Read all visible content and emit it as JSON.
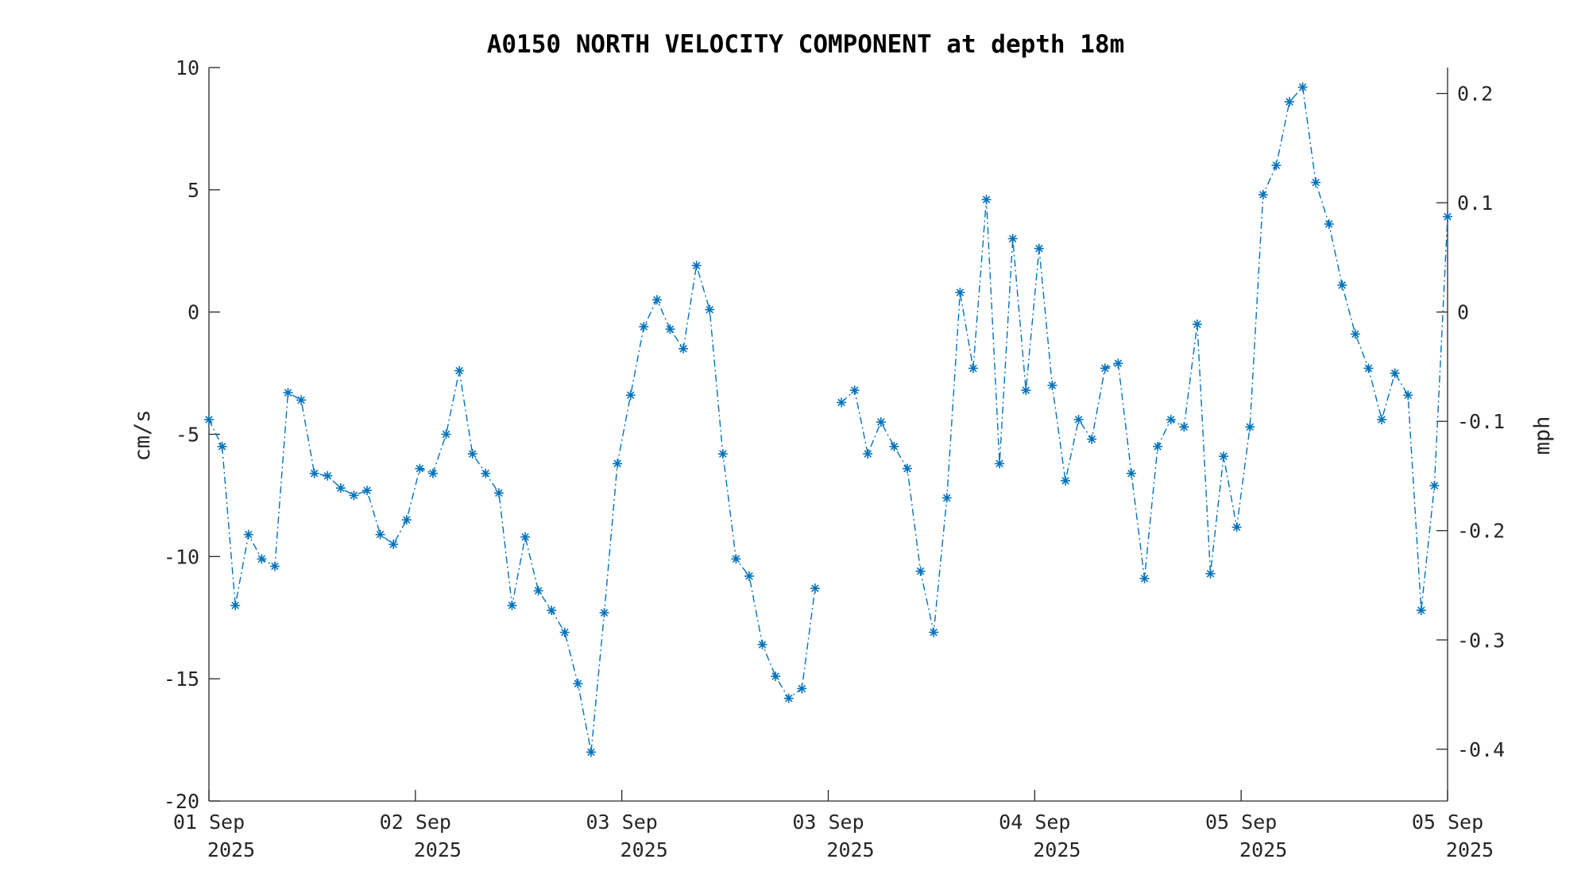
{
  "chart_data": {
    "type": "line",
    "title": "A0150 NORTH VELOCITY COMPONENT at depth 18m",
    "ylabel_left": "cm/s",
    "ylabel_right": "mph",
    "ylim_left": [
      -20,
      10
    ],
    "yticks_left": [
      "10",
      "5",
      "0",
      "-5",
      "-10",
      "-15",
      "-20"
    ],
    "ylim_right": [
      -0.4474,
      0.2237
    ],
    "yticks_right": [
      "0.2",
      "0.1",
      "0",
      "-0.1",
      "-0.2",
      "-0.3",
      "-0.4"
    ],
    "xticks": [
      {
        "day": "01 Sep",
        "year": "2025"
      },
      {
        "day": "02 Sep",
        "year": "2025"
      },
      {
        "day": "03 Sep",
        "year": "2025"
      },
      {
        "day": "03 Sep",
        "year": "2025"
      },
      {
        "day": "04 Sep",
        "year": "2025"
      },
      {
        "day": "05 Sep",
        "year": "2025"
      },
      {
        "day": "05 Sep",
        "year": "2025"
      }
    ],
    "series_color": "#0072BD",
    "marker": "asterisk",
    "line_style": "dash-dot",
    "series": [
      {
        "values": [
          -4.4,
          -5.5,
          -12.0,
          -9.1,
          -10.1,
          -10.4,
          -3.3,
          -3.6,
          -6.6,
          -6.7,
          -7.2,
          -7.5,
          -7.3,
          -9.1,
          -9.5,
          -8.5,
          -6.4,
          -6.6,
          -5.0,
          -2.4,
          -5.8,
          -6.6,
          -7.4,
          -12.0,
          -9.2,
          -11.4,
          -12.2,
          -13.1,
          -15.2,
          -18.0,
          -12.3,
          -6.2,
          -3.4,
          -0.6,
          0.5,
          -0.7,
          -1.5,
          1.9,
          0.1,
          -5.8,
          -10.1,
          -10.8,
          -13.6,
          -14.9,
          -15.8,
          -15.4,
          -11.3
        ],
        "x_start": 0,
        "x_step": 1
      },
      {
        "values": [
          -3.7,
          -3.2,
          -5.8,
          -4.5,
          -5.5,
          -6.4,
          -10.6,
          -13.1,
          -7.6,
          0.8,
          -2.3,
          4.6,
          -6.2,
          3.0,
          -3.2,
          2.6,
          -3.0,
          -6.9,
          -4.4,
          -5.2,
          -2.3,
          -2.1,
          -6.6,
          -10.9,
          -5.5,
          -4.4,
          -4.7,
          -0.5,
          -10.7,
          -5.9,
          -8.8,
          -4.7,
          4.8,
          6.0,
          8.6,
          9.2,
          5.3,
          3.6,
          1.1,
          -0.9,
          -2.3,
          -4.4,
          -2.5,
          -3.4,
          -12.2,
          -7.1,
          3.9
        ],
        "x_start": 48,
        "x_step": 1
      }
    ],
    "x_count": 95
  }
}
